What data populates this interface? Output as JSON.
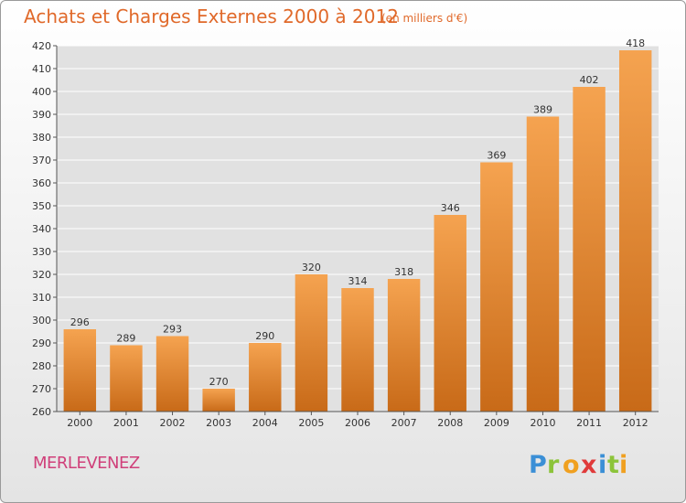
{
  "title": "Achats et Charges Externes 2000 à 2012",
  "subtitle": "(en milliers d'€)",
  "footer": {
    "commune": "MERLEVENEZ",
    "logo_text": "Proxiti"
  },
  "colors": {
    "bar_top": "#f5a350",
    "bar_bottom": "#c86a18",
    "title": "#e0692a",
    "commune": "#d0407a",
    "grid": "#ffffff",
    "plot_background": "#e1e1e1"
  },
  "chart_data": {
    "type": "bar",
    "categories": [
      "2000",
      "2001",
      "2002",
      "2003",
      "2004",
      "2005",
      "2006",
      "2007",
      "2008",
      "2009",
      "2010",
      "2011",
      "2012"
    ],
    "values": [
      296,
      289,
      293,
      270,
      290,
      320,
      314,
      318,
      346,
      369,
      389,
      402,
      418
    ],
    "ylim": [
      260,
      420
    ],
    "yticks": [
      260,
      270,
      280,
      290,
      300,
      310,
      320,
      330,
      340,
      350,
      360,
      370,
      380,
      390,
      400,
      410,
      420
    ],
    "grid": true,
    "data_labels": true,
    "xlabel": "",
    "ylabel": ""
  }
}
